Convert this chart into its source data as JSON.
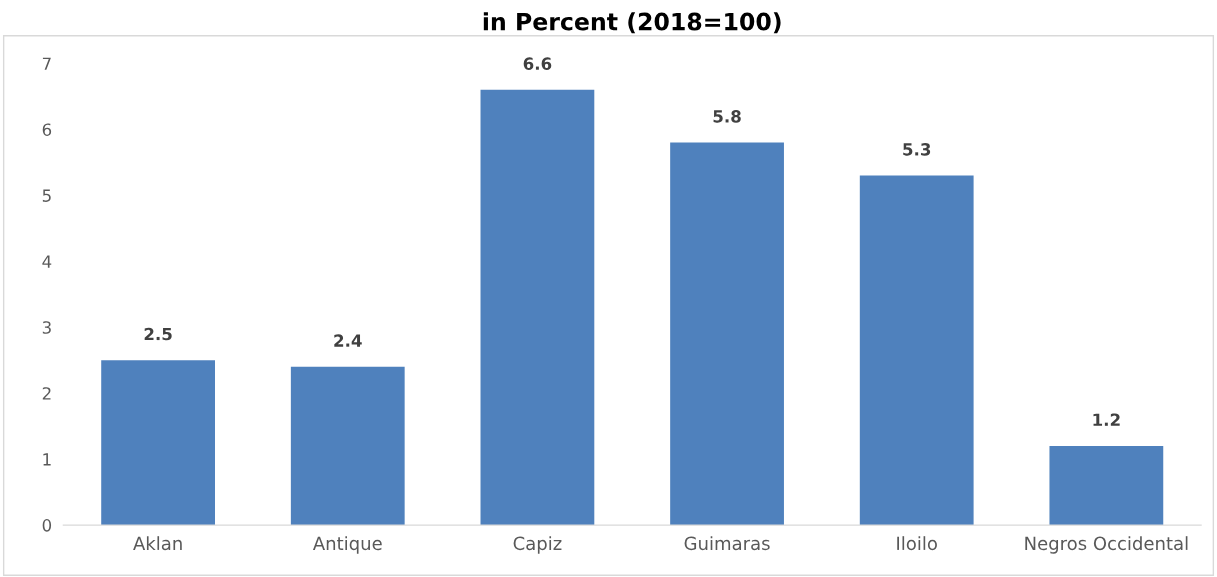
{
  "chart_data": {
    "type": "bar",
    "title": "in Percent (2018=100)",
    "categories": [
      "Aklan",
      "Antique",
      "Capiz",
      "Guimaras",
      "Iloilo",
      "Negros Occidental"
    ],
    "values": [
      2.5,
      2.4,
      6.6,
      5.8,
      5.3,
      1.2
    ],
    "color": "#4f81bd",
    "ylim": [
      0,
      7
    ],
    "yticks": [
      0,
      1,
      2,
      3,
      4,
      5,
      6,
      7
    ],
    "grid": false,
    "data_labels": true
  }
}
